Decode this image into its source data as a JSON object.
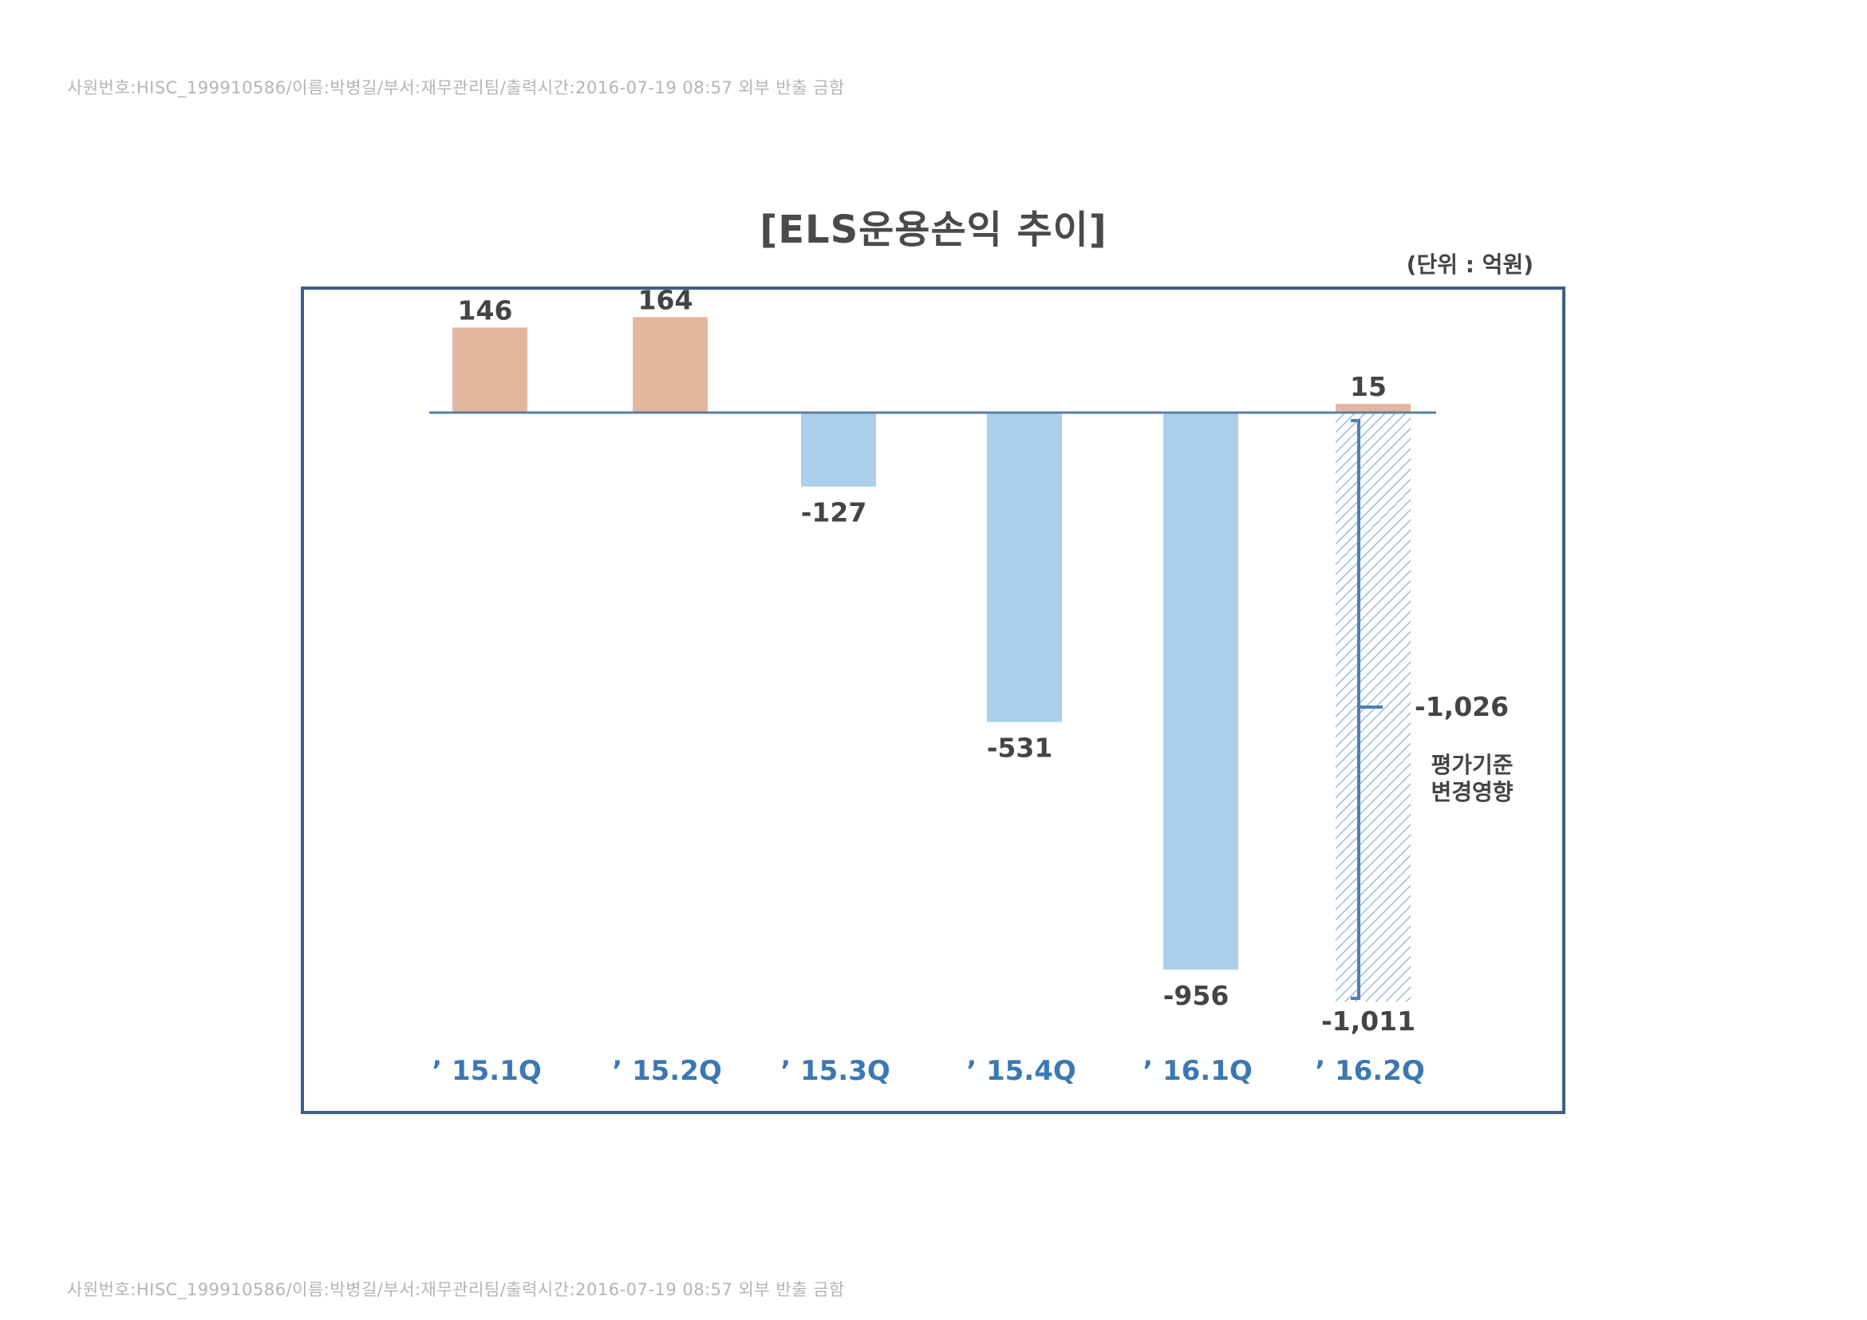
{
  "header": {
    "watermark_top": "사원번호:HISC_199910586/이름:박병길/부서:재무관리팀/출력시간:2016-07-19 08:57 외부 반출 금함",
    "watermark_bottom": "사원번호:HISC_199910586/이름:박병길/부서:재무관리팀/출력시간:2016-07-19 08:57 외부 반출 금함"
  },
  "colors": {
    "positive": "#e3b6a0",
    "negative": "#a9cfea",
    "hatch": "#9dbbd6",
    "baseline": "#5b7ea4",
    "frame": "#3e5f86",
    "bracket": "#4f7fb2",
    "xtick": "#3b78b4",
    "label": "#444444"
  },
  "chart_data": {
    "type": "bar",
    "title": "[ELS운용손익 추이]",
    "unit": "(단위 : 억원)",
    "ylim": [
      -1100,
      200
    ],
    "grid": false,
    "legend": "none",
    "categories": [
      "’ 15.1Q",
      "’ 15.2Q",
      "’ 15.3Q",
      "’ 15.4Q",
      "’ 16.1Q",
      "’ 16.2Q"
    ],
    "values": [
      146,
      164,
      -127,
      -531,
      -956,
      15
    ],
    "value_labels": [
      "146",
      "164",
      "-127",
      "-531",
      "-956",
      "15"
    ],
    "adjustment": {
      "category": "’ 16.2Q",
      "value": -1026,
      "value_label": "-1,026",
      "note_lines": [
        "평가기준",
        "변경영향"
      ],
      "resulting_total": -1011,
      "resulting_total_label": "-1,011"
    }
  }
}
